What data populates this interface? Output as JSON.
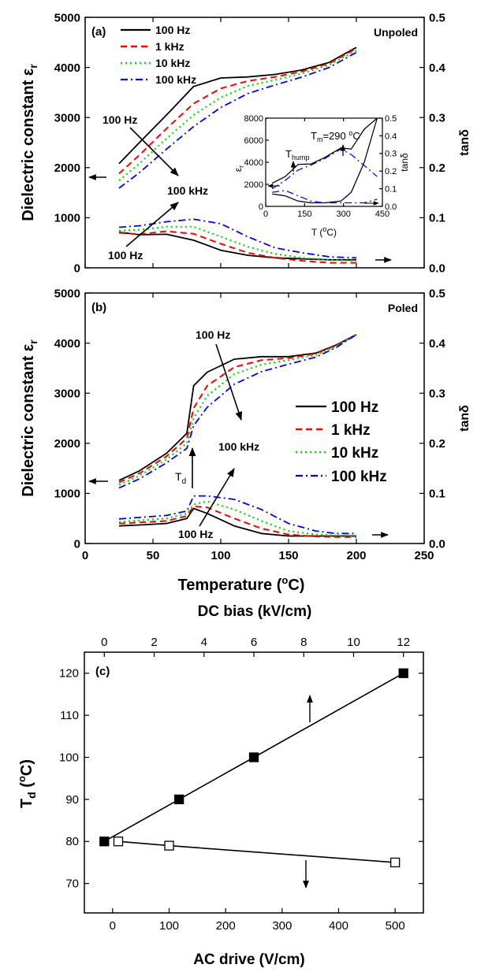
{
  "figure_labels": {
    "panel_a": "(a)",
    "panel_b": "(b)",
    "panel_c": "(c)",
    "unpoled": "Unpoled",
    "poled": "Poled"
  },
  "axes": {
    "ab_ylabel": "Dielectric constant ε",
    "ab_ylabel_sub": "r",
    "ab_y2label": "tanδ",
    "ab_xlabel": "Temperature (",
    "ab_xlabel_sup": "o",
    "ab_xlabel_end": "C)",
    "c_ylabel": "T",
    "c_ylabel_sub": "d",
    "c_ylabel_rest": " (",
    "c_ylabel_sup": "o",
    "c_ylabel_end": "C)",
    "c_xlabel": "AC drive (V/cm)",
    "c_x2label": "DC bias (kV/cm)"
  },
  "legend": [
    "100 Hz",
    "1 kHz",
    "10 kHz",
    "100 kHz"
  ],
  "annotations": {
    "a_top_from": "100 Hz",
    "a_top_to": "100 kHz",
    "a_bot_from": "100 Hz",
    "b_top_from": "100 Hz",
    "b_top_to": "100 kHz",
    "b_bot_from": "100 Hz",
    "td": "T",
    "td_sub": "d",
    "inset_tm": "T",
    "inset_tm_sub": "m",
    "inset_tm_val": "=290 ",
    "inset_tm_sup": "o",
    "inset_tm_end": "C",
    "inset_thump": "T",
    "inset_thump_sub": "hump",
    "inset_ylabel": "ε",
    "inset_ylabel_sub": "r",
    "inset_y2label": "tanδ",
    "inset_xlabel": "T (",
    "inset_xlabel_sup": "o",
    "inset_xlabel_end": "C)"
  },
  "colors": {
    "100 Hz": "#000000",
    "1 kHz": "#ff0000",
    "10 kHz": "#00dd00",
    "100 kHz": "#0000ff"
  },
  "chart_data": [
    {
      "panel": "a",
      "type": "line",
      "title": "Unpoled",
      "xlabel": "Temperature (°C)",
      "ylabel": "Dielectric constant εr",
      "y2label": "tanδ",
      "xlim": [
        0,
        250
      ],
      "ylim": [
        0,
        5000
      ],
      "y2lim": [
        0,
        0.5
      ],
      "xticks": [
        0,
        50,
        100,
        150,
        200,
        250
      ],
      "yticks": [
        0,
        1000,
        2000,
        3000,
        4000,
        5000
      ],
      "y2ticks": [
        0.0,
        0.1,
        0.2,
        0.3,
        0.4,
        0.5
      ],
      "x": [
        25,
        40,
        60,
        80,
        100,
        120,
        140,
        160,
        180,
        200
      ],
      "series": [
        {
          "name": "100 Hz",
          "style": "solid",
          "axis": "left",
          "values": [
            2080,
            2500,
            3050,
            3620,
            3790,
            3810,
            3860,
            3950,
            4100,
            4400
          ]
        },
        {
          "name": "1 kHz",
          "style": "dash",
          "axis": "left",
          "values": [
            1880,
            2250,
            2780,
            3280,
            3580,
            3730,
            3810,
            3920,
            4080,
            4380
          ]
        },
        {
          "name": "10 kHz",
          "style": "dot",
          "axis": "left",
          "values": [
            1740,
            2080,
            2580,
            3050,
            3400,
            3630,
            3750,
            3880,
            4050,
            4340
          ]
        },
        {
          "name": "100 kHz",
          "style": "dashdot",
          "axis": "left",
          "values": [
            1590,
            1900,
            2370,
            2820,
            3200,
            3480,
            3650,
            3810,
            4000,
            4300
          ]
        },
        {
          "name": "100 Hz",
          "style": "solid",
          "axis": "right",
          "values": [
            0.071,
            0.066,
            0.067,
            0.055,
            0.035,
            0.025,
            0.02,
            0.018,
            0.016,
            0.016
          ]
        },
        {
          "name": "1 kHz",
          "style": "dash",
          "axis": "right",
          "values": [
            0.07,
            0.067,
            0.073,
            0.068,
            0.048,
            0.03,
            0.02,
            0.014,
            0.01,
            0.01
          ]
        },
        {
          "name": "10 kHz",
          "style": "dot",
          "axis": "right",
          "values": [
            0.074,
            0.076,
            0.082,
            0.082,
            0.062,
            0.042,
            0.028,
            0.02,
            0.016,
            0.014
          ]
        },
        {
          "name": "100 kHz",
          "style": "dashdot",
          "axis": "right",
          "values": [
            0.081,
            0.084,
            0.092,
            0.097,
            0.088,
            0.062,
            0.04,
            0.03,
            0.022,
            0.02
          ]
        }
      ]
    },
    {
      "panel": "a-inset",
      "type": "line",
      "xlabel": "T (°C)",
      "ylabel": "εr",
      "y2label": "tanδ",
      "xlim": [
        0,
        450
      ],
      "ylim": [
        0,
        8000
      ],
      "y2lim": [
        0,
        0.5
      ],
      "xticks": [
        0,
        150,
        300,
        450
      ],
      "yticks": [
        0,
        2000,
        4000,
        6000,
        8000
      ],
      "y2ticks": [
        0.0,
        0.1,
        0.2,
        0.3,
        0.4,
        0.5
      ],
      "x": [
        25,
        75,
        125,
        175,
        225,
        290,
        330,
        380,
        430
      ],
      "series": [
        {
          "name": "100 Hz",
          "style": "solid",
          "axis": "left",
          "values": [
            2100,
            2700,
            3800,
            3850,
            4400,
            5300,
            5200,
            7000,
            8000
          ]
        },
        {
          "name": "100 kHz",
          "style": "dashdot",
          "axis": "left",
          "values": [
            1600,
            2350,
            3300,
            3750,
            4300,
            5200,
            4700,
            3700,
            2700
          ]
        },
        {
          "name": "100 Hz",
          "style": "solid",
          "axis": "right",
          "values": [
            0.07,
            0.06,
            0.03,
            0.02,
            0.02,
            0.03,
            0.08,
            0.25,
            0.5
          ]
        },
        {
          "name": "100 kHz",
          "style": "dashdot",
          "axis": "right",
          "values": [
            0.08,
            0.09,
            0.06,
            0.03,
            0.02,
            0.02,
            0.02,
            0.02,
            0.04
          ]
        }
      ]
    },
    {
      "panel": "b",
      "type": "line",
      "title": "Poled",
      "xlabel": "Temperature (°C)",
      "ylabel": "Dielectric constant εr",
      "y2label": "tanδ",
      "xlim": [
        0,
        250
      ],
      "ylim": [
        0,
        5000
      ],
      "y2lim": [
        0,
        0.5
      ],
      "xticks": [
        0,
        50,
        100,
        150,
        200,
        250
      ],
      "yticks": [
        0,
        1000,
        2000,
        3000,
        4000,
        5000
      ],
      "y2ticks": [
        0.0,
        0.1,
        0.2,
        0.3,
        0.4,
        0.5
      ],
      "x": [
        25,
        40,
        60,
        75,
        80,
        90,
        110,
        130,
        150,
        170,
        185,
        200
      ],
      "series": [
        {
          "name": "100 Hz",
          "style": "solid",
          "axis": "left",
          "values": [
            1260,
            1450,
            1800,
            2200,
            3150,
            3420,
            3680,
            3730,
            3730,
            3800,
            3960,
            4170
          ]
        },
        {
          "name": "1 kHz",
          "style": "dash",
          "axis": "left",
          "values": [
            1220,
            1400,
            1740,
            2100,
            2700,
            3150,
            3520,
            3660,
            3700,
            3790,
            3950,
            4170
          ]
        },
        {
          "name": "10 kHz",
          "style": "dot",
          "axis": "left",
          "values": [
            1170,
            1350,
            1680,
            2000,
            2500,
            2950,
            3380,
            3570,
            3660,
            3760,
            3930,
            4170
          ]
        },
        {
          "name": "100 kHz",
          "style": "dashdot",
          "axis": "left",
          "values": [
            1110,
            1290,
            1610,
            1900,
            2350,
            2720,
            3180,
            3430,
            3580,
            3720,
            3910,
            4170
          ]
        },
        {
          "name": "100 Hz",
          "style": "solid",
          "axis": "right",
          "values": [
            0.035,
            0.037,
            0.04,
            0.05,
            0.07,
            0.06,
            0.035,
            0.02,
            0.015,
            0.015,
            0.015,
            0.015
          ]
        },
        {
          "name": "1 kHz",
          "style": "dash",
          "axis": "right",
          "values": [
            0.04,
            0.042,
            0.045,
            0.055,
            0.074,
            0.072,
            0.05,
            0.03,
            0.018,
            0.014,
            0.013,
            0.013
          ]
        },
        {
          "name": "10 kHz",
          "style": "dot",
          "axis": "right",
          "values": [
            0.043,
            0.046,
            0.05,
            0.06,
            0.078,
            0.084,
            0.068,
            0.045,
            0.025,
            0.018,
            0.016,
            0.016
          ]
        },
        {
          "name": "100 kHz",
          "style": "dashdot",
          "axis": "right",
          "values": [
            0.049,
            0.052,
            0.056,
            0.065,
            0.095,
            0.095,
            0.088,
            0.068,
            0.04,
            0.025,
            0.02,
            0.02
          ]
        }
      ]
    },
    {
      "panel": "c",
      "type": "scatter",
      "xlabel": "AC drive (V/cm)",
      "x2label": "DC bias (kV/cm)",
      "ylabel": "Td (°C)",
      "xlim": [
        -50,
        550
      ],
      "x2lim": [
        -0.8,
        12.8
      ],
      "ylim": [
        63,
        125
      ],
      "xticks": [
        0,
        100,
        200,
        300,
        400,
        500
      ],
      "x2ticks": [
        0,
        2,
        4,
        6,
        8,
        10,
        12
      ],
      "yticks": [
        70,
        80,
        90,
        100,
        110,
        120
      ],
      "series": [
        {
          "name": "DC bias",
          "marker": "filled-square",
          "axis": "top",
          "x": [
            0,
            3,
            6,
            12
          ],
          "values": [
            80,
            90,
            100,
            120
          ]
        },
        {
          "name": "AC drive",
          "marker": "open-square",
          "axis": "bottom",
          "x": [
            10,
            100,
            500
          ],
          "values": [
            80,
            79,
            75
          ]
        }
      ]
    }
  ]
}
